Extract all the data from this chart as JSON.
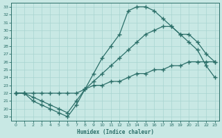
{
  "xlabel": "Humidex (Indice chaleur)",
  "xlim": [
    -0.5,
    23.5
  ],
  "ylim": [
    18.5,
    33.5
  ],
  "xticks": [
    0,
    1,
    2,
    3,
    4,
    5,
    6,
    7,
    8,
    9,
    10,
    11,
    12,
    13,
    14,
    15,
    16,
    17,
    18,
    19,
    20,
    21,
    22,
    23
  ],
  "yticks": [
    19,
    20,
    21,
    22,
    23,
    24,
    25,
    26,
    27,
    28,
    29,
    30,
    31,
    32,
    33
  ],
  "bg_color": "#c8e8e4",
  "line_color": "#2a6e68",
  "grid_color": "#a8d4d0",
  "curve1_x": [
    0,
    1,
    2,
    3,
    4,
    5,
    6,
    7,
    8,
    9,
    10,
    11,
    12,
    13,
    14,
    15,
    16,
    17,
    18,
    19,
    20,
    21,
    22,
    23
  ],
  "curve1_y": [
    22.0,
    22.0,
    21.0,
    20.5,
    20.0,
    19.5,
    19.0,
    20.5,
    22.5,
    24.5,
    26.5,
    28.0,
    29.5,
    32.5,
    33.0,
    33.0,
    32.5,
    31.5,
    30.5,
    29.5,
    28.5,
    27.5,
    25.5,
    24.0
  ],
  "curve2_x": [
    0,
    1,
    2,
    3,
    4,
    5,
    6,
    7,
    8,
    9,
    10,
    11,
    12,
    13,
    14,
    15,
    16,
    17,
    18,
    19,
    20,
    21,
    22,
    23
  ],
  "curve2_y": [
    22.0,
    22.0,
    21.5,
    21.0,
    20.5,
    20.0,
    19.5,
    21.0,
    22.5,
    23.5,
    24.5,
    25.5,
    26.5,
    27.5,
    28.5,
    29.5,
    30.0,
    30.5,
    30.5,
    29.5,
    29.5,
    28.5,
    27.0,
    26.0
  ],
  "curve3_x": [
    0,
    1,
    2,
    3,
    4,
    5,
    6,
    7,
    8,
    9,
    10,
    11,
    12,
    13,
    14,
    15,
    16,
    17,
    18,
    19,
    20,
    21,
    22,
    23
  ],
  "curve3_y": [
    22.0,
    22.0,
    22.0,
    22.0,
    22.0,
    22.0,
    22.0,
    22.0,
    22.5,
    23.0,
    23.0,
    23.5,
    23.5,
    24.0,
    24.5,
    24.5,
    25.0,
    25.0,
    25.5,
    25.5,
    26.0,
    26.0,
    26.0,
    26.0
  ]
}
